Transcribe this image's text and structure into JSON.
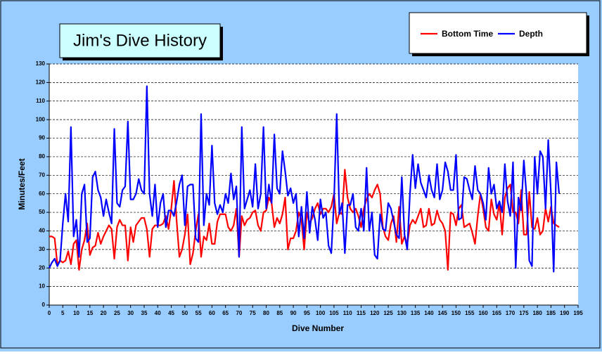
{
  "chart_data": {
    "type": "line",
    "title": "Jim's Dive History",
    "xlabel": "Dive Number",
    "ylabel": "Minutes/Feet",
    "x": [
      0,
      1,
      2,
      3,
      4,
      5,
      6,
      7,
      8,
      9,
      10,
      11,
      12,
      13,
      14,
      15,
      16,
      17,
      18,
      19,
      20,
      21,
      22,
      23,
      24,
      25,
      26,
      27,
      28,
      29,
      30,
      31,
      32,
      33,
      34,
      35,
      36,
      37,
      38,
      39,
      40,
      41,
      42,
      43,
      44,
      45,
      46,
      47,
      48,
      49,
      50,
      51,
      52,
      53,
      54,
      55,
      56,
      57,
      58,
      59,
      60,
      61,
      62,
      63,
      64,
      65,
      66,
      67,
      68,
      69,
      70,
      71,
      72,
      73,
      74,
      75,
      76,
      77,
      78,
      79,
      80,
      81,
      82,
      83,
      84,
      85,
      86,
      87,
      88,
      89,
      90,
      91,
      92,
      93,
      94,
      95,
      96,
      97,
      98,
      99,
      100,
      101,
      102,
      103,
      104,
      105,
      106,
      107,
      108,
      109,
      110,
      111,
      112,
      113,
      114,
      115,
      116,
      117,
      118,
      119,
      120,
      121,
      122,
      123,
      124,
      125,
      126,
      127,
      128,
      129,
      130,
      131,
      132,
      133,
      134,
      135,
      136,
      137,
      138,
      139,
      140,
      141,
      142,
      143,
      144,
      145,
      146,
      147,
      148,
      149,
      150,
      151,
      152,
      153,
      154,
      155,
      156,
      157,
      158,
      159,
      160,
      161,
      162,
      163,
      164,
      165,
      166,
      167,
      168,
      169,
      170,
      171,
      172,
      173,
      174,
      175,
      176,
      177,
      178,
      179,
      180,
      181,
      182,
      183,
      184,
      185,
      186,
      187,
      188
    ],
    "series": [
      {
        "name": "Bottom Time",
        "color": "#ff0000",
        "values": [
          37,
          37,
          36,
          22,
          24,
          23,
          24,
          29,
          22,
          33,
          35,
          19,
          30,
          35,
          44,
          27,
          31,
          32,
          39,
          33,
          37,
          40,
          43,
          41,
          25,
          42,
          46,
          43,
          43,
          24,
          42,
          34,
          43,
          45,
          47,
          47,
          41,
          26,
          41,
          43,
          43,
          43,
          44,
          48,
          41,
          52,
          67,
          45,
          26,
          30,
          38,
          49,
          22,
          28,
          40,
          49,
          26,
          37,
          35,
          44,
          33,
          33,
          45,
          49,
          49,
          49,
          42,
          40,
          43,
          52,
          26,
          48,
          43,
          46,
          47,
          50,
          51,
          43,
          40,
          50,
          51,
          58,
          55,
          42,
          47,
          44,
          49,
          58,
          30,
          36,
          36,
          40,
          50,
          46,
          30,
          50,
          44,
          47,
          52,
          55,
          49,
          52,
          52,
          50,
          53,
          60,
          44,
          50,
          49,
          73,
          58,
          52,
          50,
          52,
          48,
          42,
          52,
          57,
          60,
          58,
          62,
          65,
          60,
          42,
          37,
          35,
          44,
          48,
          34,
          53,
          33,
          37,
          33,
          43,
          46,
          44,
          48,
          52,
          42,
          43,
          52,
          43,
          44,
          51,
          46,
          44,
          40,
          19,
          50,
          49,
          43,
          52,
          54,
          42,
          43,
          44,
          39,
          33,
          48,
          60,
          52,
          42,
          40,
          57,
          49,
          46,
          55,
          38,
          58,
          63,
          65,
          50,
          50,
          44,
          62,
          38,
          38,
          61,
          42,
          41,
          47,
          38,
          40,
          52,
          45,
          53,
          44,
          43,
          42
        ]
      },
      {
        "name": "Depth",
        "color": "#0000ff",
        "values": [
          20,
          23,
          25,
          21,
          24,
          44,
          60,
          45,
          96,
          37,
          46,
          26,
          60,
          65,
          34,
          36,
          69,
          72,
          62,
          58,
          48,
          57,
          50,
          44,
          95,
          55,
          53,
          62,
          64,
          99,
          57,
          57,
          60,
          68,
          62,
          60,
          118,
          60,
          48,
          65,
          42,
          55,
          60,
          42,
          51,
          51,
          48,
          56,
          65,
          70,
          43,
          64,
          65,
          65,
          36,
          34,
          103,
          43,
          60,
          54,
          86,
          55,
          49,
          54,
          50,
          60,
          55,
          71,
          57,
          64,
          26,
          96,
          52,
          57,
          62,
          53,
          76,
          52,
          60,
          96,
          52,
          65,
          55,
          92,
          63,
          60,
          83,
          72,
          59,
          63,
          55,
          60,
          37,
          53,
          36,
          61,
          39,
          53,
          46,
          35,
          57,
          47,
          50,
          32,
          28,
          56,
          103,
          49,
          55,
          28,
          54,
          54,
          60,
          42,
          40,
          52,
          40,
          74,
          40,
          50,
          27,
          25,
          49,
          41,
          40,
          55,
          52,
          45,
          38,
          36,
          69,
          38,
          30,
          60,
          81,
          63,
          76,
          66,
          62,
          58,
          70,
          62,
          58,
          76,
          57,
          62,
          77,
          72,
          62,
          62,
          81,
          46,
          47,
          69,
          68,
          62,
          57,
          75,
          62,
          60,
          55,
          46,
          74,
          60,
          65,
          52,
          56,
          50,
          76,
          56,
          48,
          77,
          20,
          58,
          51,
          78,
          59,
          24,
          21,
          80,
          60,
          83,
          80,
          52,
          89,
          60,
          18,
          77,
          60
        ]
      }
    ],
    "xlim": [
      0,
      195
    ],
    "xticks": [
      0,
      5,
      10,
      15,
      20,
      25,
      30,
      35,
      40,
      45,
      50,
      55,
      60,
      65,
      70,
      75,
      80,
      85,
      90,
      95,
      100,
      105,
      110,
      115,
      120,
      125,
      130,
      135,
      140,
      145,
      150,
      155,
      160,
      165,
      170,
      175,
      180,
      185,
      190,
      195
    ],
    "ylim": [
      0,
      130
    ],
    "yticks": [
      0,
      10,
      20,
      30,
      40,
      50,
      60,
      70,
      80,
      90,
      100,
      110,
      120,
      130
    ],
    "grid": true,
    "legend": "top-right"
  }
}
